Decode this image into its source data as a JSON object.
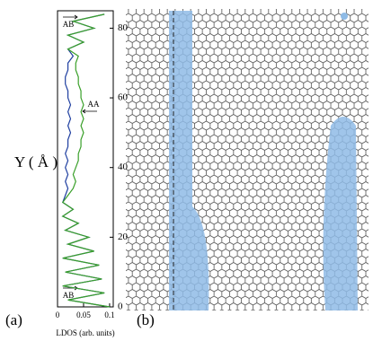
{
  "chart_data": {
    "type": "line",
    "panel_label": "(a)",
    "xlabel": "LDOS (arb. units)",
    "ylabel": "Y ( Å )",
    "x": [
      0,
      2,
      4,
      6,
      8,
      10,
      12,
      14,
      16,
      18,
      20,
      22,
      24,
      26,
      28,
      30,
      32,
      34,
      36,
      38,
      40,
      42,
      44,
      46,
      48,
      50,
      52,
      54,
      56,
      58,
      60,
      62,
      64,
      66,
      68,
      70,
      72,
      74,
      76,
      78,
      80,
      82,
      84
    ],
    "series": [
      {
        "color": "#1f3fa0",
        "values": [
          0.1,
          0.02,
          0.09,
          0.01,
          0.085,
          0.015,
          0.08,
          0.01,
          0.07,
          0.02,
          0.06,
          0.015,
          0.04,
          0.01,
          0.03,
          0.01,
          0.015,
          0.02,
          0.015,
          0.02,
          0.015,
          0.02,
          0.015,
          0.02,
          0.02,
          0.025,
          0.02,
          0.025,
          0.02,
          0.025,
          0.02,
          0.02,
          0.015,
          0.015,
          0.02,
          0.02,
          0.03,
          0.02,
          0.05,
          0.02,
          0.07,
          0.03,
          0.09
        ]
      },
      {
        "color": "#3aa02a",
        "values": [
          0.1,
          0.02,
          0.09,
          0.01,
          0.085,
          0.015,
          0.08,
          0.01,
          0.07,
          0.02,
          0.06,
          0.015,
          0.04,
          0.01,
          0.03,
          0.01,
          0.02,
          0.03,
          0.035,
          0.03,
          0.035,
          0.04,
          0.04,
          0.045,
          0.045,
          0.05,
          0.045,
          0.05,
          0.045,
          0.05,
          0.045,
          0.045,
          0.04,
          0.04,
          0.035,
          0.035,
          0.04,
          0.02,
          0.05,
          0.02,
          0.07,
          0.03,
          0.09
        ]
      }
    ],
    "xlim": [
      0,
      0.107
    ],
    "xticks": [
      0,
      0.05,
      0.1
    ],
    "ylim": [
      0,
      85
    ],
    "yticks": [
      0,
      20,
      40,
      60,
      80
    ],
    "annotations": [
      "AB",
      "AA",
      "AB"
    ]
  },
  "image_panel": {
    "label": "(b)"
  }
}
